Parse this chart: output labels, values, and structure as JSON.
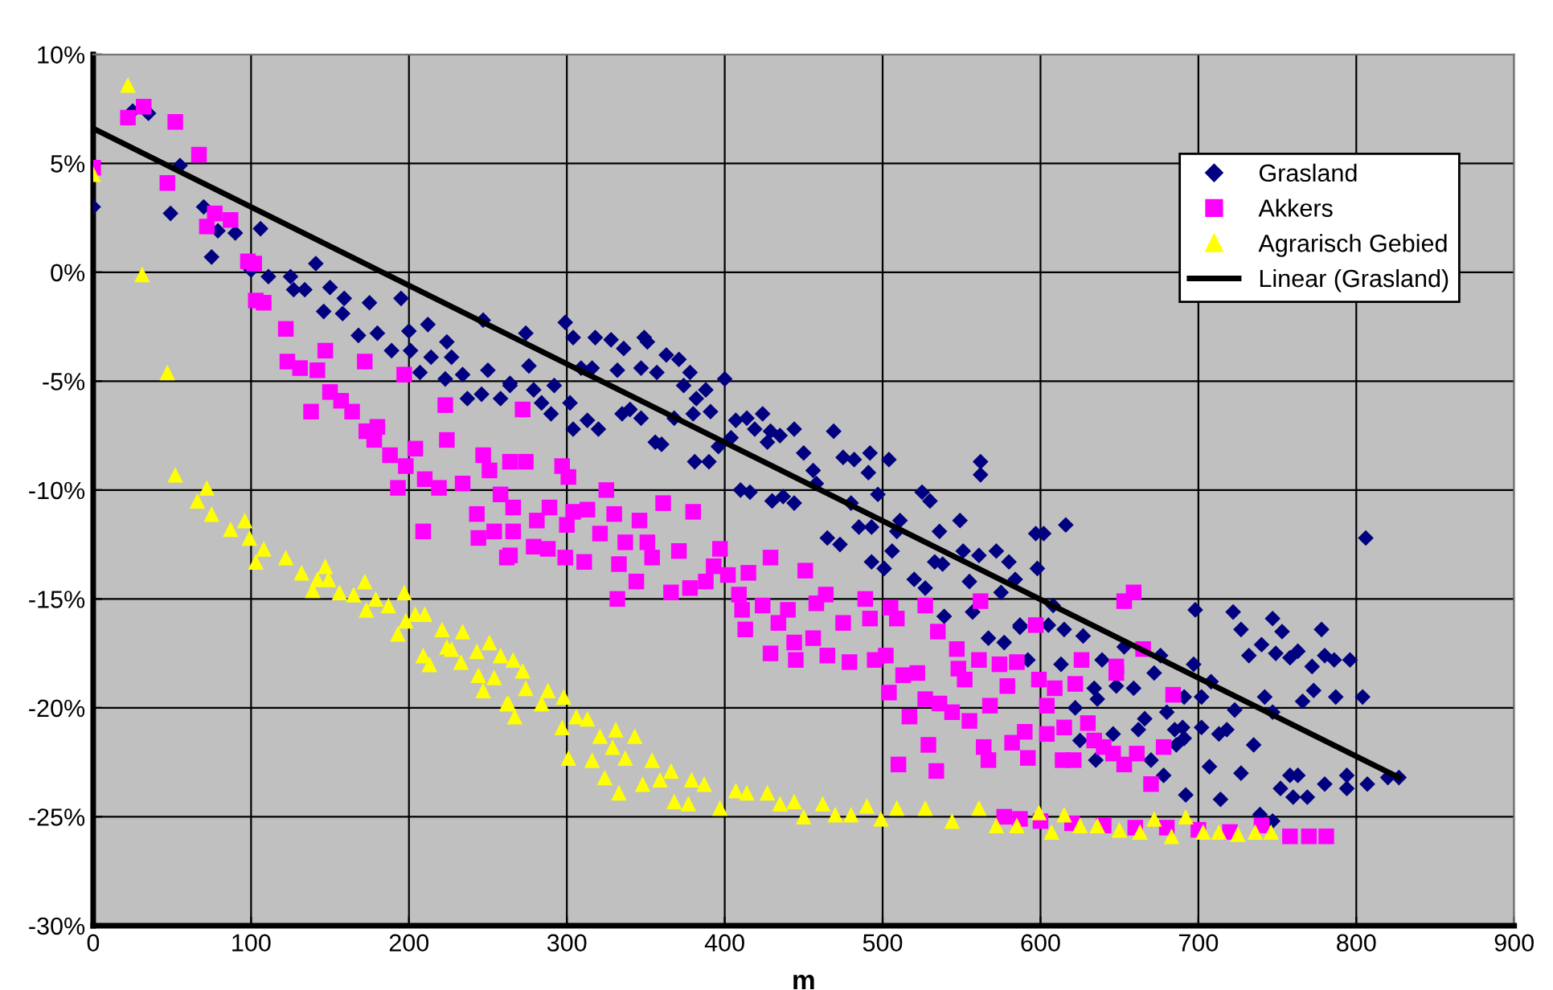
{
  "chart_data": {
    "type": "scatter",
    "xlabel": "m",
    "xlim": [
      0,
      900
    ],
    "xticks": [
      0,
      100,
      200,
      300,
      400,
      500,
      600,
      700,
      800,
      900
    ],
    "ylim": [
      -30,
      10
    ],
    "yticks": [
      {
        "value": -30,
        "label": "-30%"
      },
      {
        "value": -25,
        "label": "-25%"
      },
      {
        "value": -20,
        "label": "-20%"
      },
      {
        "value": -15,
        "label": "-15%"
      },
      {
        "value": -10,
        "label": "-10%"
      },
      {
        "value": -5,
        "label": "-5%"
      },
      {
        "value": 0,
        "label": "0%"
      },
      {
        "value": 5,
        "label": "5%"
      },
      {
        "value": 10,
        "label": "10%"
      }
    ],
    "grid": true,
    "legend": "top right",
    "series": [
      {
        "name": "Grasland",
        "marker": "diamond",
        "color": "#000080",
        "x": [
          0,
          25,
          35,
          55,
          49,
          70,
          75,
          79,
          90,
          106,
          100,
          111,
          125,
          127,
          134,
          141,
          150,
          146,
          159,
          158,
          168,
          175,
          180,
          189,
          195,
          200,
          201,
          207,
          212,
          214,
          224,
          227,
          223,
          234,
          237,
          246,
          247,
          250,
          258,
          264,
          274,
          299,
          304,
          318,
          328,
          336,
          349,
          351,
          363,
          371,
          276,
          309,
          316,
          332,
          347,
          357,
          378,
          400,
          264,
          279,
          292,
          284,
          290,
          302,
          313,
          304,
          320,
          335,
          340,
          347,
          356,
          360,
          368,
          374,
          380,
          382,
          388,
          391,
          381,
          390,
          396,
          404,
          407,
          414,
          419,
          424,
          429,
          435,
          427,
          444,
          450,
          456,
          410,
          416,
          430,
          437,
          444,
          458,
          469,
          475,
          482,
          492,
          491,
          504,
          497,
          480,
          465,
          473,
          485,
          493,
          493,
          501,
          506,
          511,
          509,
          525,
          530,
          536,
          549,
          520,
          527,
          533,
          538,
          551,
          555,
          561,
          572,
          580,
          575,
          539,
          557,
          567,
          577,
          587,
          562,
          562,
          597,
          602,
          616,
          598,
          584,
          608,
          587,
          605,
          615,
          627,
          613,
          592,
          639,
          653,
          659,
          648,
          634,
          636,
          622,
          672,
          676,
          680,
          666,
          662,
          646,
          625,
          635,
          670,
          678,
          685,
          690,
          691,
          686,
          698,
          697,
          691,
          702,
          708,
          702,
          707,
          692,
          713,
          718,
          714,
          722,
          727,
          723,
          735,
          727,
          732,
          740,
          747,
          753,
          749,
          758,
          763,
          742,
          747,
          739,
          747,
          752,
          758,
          763,
          760,
          769,
          766,
          773,
          772,
          778,
          780,
          786,
          796,
          787,
          780,
          794,
          794,
          804,
          806,
          807,
          820,
          827
        ],
        "values": [
          3.0,
          7.4,
          7.3,
          4.9,
          2.7,
          3.0,
          0.7,
          1.9,
          1.8,
          2.0,
          0.1,
          -0.2,
          -0.2,
          -0.8,
          -0.8,
          0.4,
          -0.7,
          -1.8,
          -1.2,
          -1.9,
          -2.9,
          -1.4,
          -2.8,
          -3.6,
          -1.2,
          -2.7,
          -3.6,
          -4.6,
          -2.4,
          -3.9,
          -3.2,
          -3.9,
          -4.9,
          -4.7,
          -5.8,
          -5.6,
          -2.2,
          -4.5,
          -5.8,
          -5.1,
          -2.8,
          -2.3,
          -3.0,
          -3.0,
          -3.1,
          -3.5,
          -3.0,
          -3.2,
          -3.8,
          -4.0,
          -4.3,
          -4.4,
          -4.4,
          -4.5,
          -4.4,
          -4.6,
          -4.6,
          -4.9,
          -5.2,
          -5.4,
          -5.2,
          -6.0,
          -6.5,
          -6.0,
          -6.8,
          -7.2,
          -7.2,
          -6.5,
          -6.3,
          -6.7,
          -7.8,
          -7.9,
          -6.7,
          -5.2,
          -6.5,
          -5.8,
          -5.4,
          -6.4,
          -8.7,
          -8.7,
          -8.0,
          -7.6,
          -6.8,
          -6.7,
          -7.2,
          -6.5,
          -7.3,
          -7.5,
          -7.8,
          -7.2,
          -8.3,
          -9.1,
          -10.0,
          -10.1,
          -10.5,
          -10.3,
          -10.6,
          -9.7,
          -7.3,
          -8.5,
          -8.6,
          -8.3,
          -9.2,
          -8.6,
          -10.2,
          -10.6,
          -12.2,
          -12.5,
          -11.7,
          -11.7,
          -13.3,
          -13.6,
          -12.8,
          -11.4,
          -11.9,
          -10.1,
          -10.5,
          -11.9,
          -11.4,
          -14.1,
          -14.5,
          -13.3,
          -13.4,
          -12.8,
          -14.2,
          -13.0,
          -12.8,
          -13.3,
          -14.7,
          -15.8,
          -15.6,
          -16.8,
          -17.0,
          -16.2,
          -8.7,
          -9.3,
          -12.0,
          -12.0,
          -11.6,
          -13.6,
          -14.1,
          -15.3,
          -16.3,
          -16.2,
          -16.4,
          -16.7,
          -18.0,
          -17.8,
          -17.8,
          -17.2,
          -19.1,
          -19.0,
          -19.1,
          -19.6,
          -20.0,
          -18.4,
          -17.6,
          -20.2,
          -20.5,
          -21.0,
          -21.2,
          -21.5,
          -22.4,
          -22.4,
          -23.1,
          -21.0,
          -20.9,
          -21.4,
          -21.7,
          -15.5,
          -18.0,
          -19.5,
          -19.5,
          -18.8,
          -20.9,
          -22.7,
          -24.0,
          -21.2,
          -21.0,
          -24.2,
          -15.6,
          -16.4,
          -20.1,
          -21.7,
          -23.0,
          -17.6,
          -17.1,
          -15.9,
          -16.5,
          -17.5,
          -17.7,
          -17.4,
          -19.5,
          -20.2,
          -24.9,
          -25.2,
          -23.7,
          -23.1,
          -23.1,
          -24.1,
          -24.1,
          -19.7,
          -19.2,
          -18.1,
          -16.4,
          -17.6,
          -17.8,
          -17.8,
          -19.5,
          -23.5,
          -23.1,
          -23.7,
          -19.5,
          -12.2,
          -23.5,
          -23.2,
          -23.2
        ]
      },
      {
        "name": "Akkers",
        "marker": "square",
        "color": "#ff00ff",
        "x": [
          0,
          22,
          32,
          52,
          67,
          47,
          72,
          77,
          87,
          98,
          102,
          103,
          108,
          122,
          123,
          131,
          147,
          142,
          138,
          150,
          157,
          164,
          172,
          173,
          180,
          178,
          188,
          198,
          197,
          204,
          223,
          224,
          193,
          210,
          219,
          234,
          247,
          251,
          264,
          258,
          209,
          244,
          254,
          262,
          243,
          272,
          274,
          297,
          301,
          325,
          266,
          289,
          304,
          313,
          330,
          361,
          380,
          266,
          281,
          300,
          321,
          346,
          264,
          279,
          288,
          299,
          311,
          333,
          337,
          351,
          354,
          371,
          397,
          429,
          344,
          332,
          366,
          378,
          388,
          393,
          402,
          415,
          409,
          411,
          413,
          424,
          434,
          440,
          451,
          429,
          445,
          444,
          456,
          465,
          458,
          464,
          475,
          489,
          492,
          505,
          509,
          479,
          495,
          502,
          504,
          513,
          522,
          517,
          527,
          536,
          544,
          555,
          568,
          579,
          529,
          510,
          534,
          564,
          567,
          582,
          548,
          552,
          547,
          561,
          574,
          562,
          527,
          535,
          653,
          659,
          597,
          665,
          626,
          648,
          648,
          599,
          622,
          609,
          684,
          585,
          604,
          630,
          615,
          590,
          604,
          634,
          640,
          646,
          661,
          678,
          592,
          614,
          621,
          653,
          670,
          577,
          587,
          600,
          620,
          640,
          660,
          680,
          700,
          720,
          740,
          758,
          770,
          781
        ],
        "values": [
          4.8,
          7.1,
          7.6,
          6.9,
          5.4,
          4.1,
          2.1,
          2.7,
          2.4,
          0.5,
          0.4,
          -1.3,
          -1.4,
          -2.6,
          -4.1,
          -4.4,
          -3.6,
          -4.5,
          -6.4,
          -5.5,
          -5.9,
          -6.4,
          -4.1,
          -7.3,
          -7.1,
          -7.7,
          -8.4,
          -8.9,
          -4.7,
          -8.1,
          -6.1,
          -7.7,
          -9.9,
          -9.5,
          -9.9,
          -9.7,
          -8.4,
          -9.1,
          -8.7,
          -10.2,
          -11.9,
          -12.2,
          -11.9,
          -13.1,
          -11.1,
          -6.3,
          -8.7,
          -8.9,
          -9.4,
          -10.0,
          -10.8,
          -10.8,
          -11.0,
          -10.9,
          -11.1,
          -10.6,
          -11.0,
          -11.9,
          -11.4,
          -11.6,
          -12.0,
          -11.4,
          -13.0,
          -12.6,
          -12.7,
          -13.1,
          -13.3,
          -13.4,
          -12.4,
          -12.4,
          -13.1,
          -12.8,
          -12.7,
          -13.1,
          -14.2,
          -15.0,
          -14.7,
          -14.5,
          -14.2,
          -13.5,
          -13.9,
          -13.8,
          -14.8,
          -15.5,
          -16.4,
          -15.3,
          -16.1,
          -15.5,
          -13.7,
          -17.5,
          -17.8,
          -17.0,
          -16.8,
          -17.6,
          -15.2,
          -14.8,
          -16.1,
          -15.0,
          -15.9,
          -15.4,
          -15.9,
          -17.9,
          -17.8,
          -17.6,
          -19.3,
          -18.5,
          -18.4,
          -20.4,
          -19.6,
          -19.8,
          -20.2,
          -20.6,
          -19.9,
          -19.0,
          -21.7,
          -22.6,
          -22.9,
          -21.8,
          -22.4,
          -21.6,
          -18.2,
          -18.7,
          -17.3,
          -17.8,
          -18.0,
          -15.1,
          -15.3,
          -16.5,
          -15.1,
          -14.7,
          -16.2,
          -17.3,
          -17.8,
          -18.1,
          -18.4,
          -18.7,
          -18.9,
          -19.1,
          -19.4,
          -17.9,
          -19.9,
          -20.7,
          -20.9,
          -21.1,
          -21.2,
          -21.5,
          -21.8,
          -22.1,
          -22.1,
          -21.8,
          -22.3,
          -22.4,
          -22.4,
          -22.6,
          -23.5,
          -25.0,
          -25.1,
          -25.2,
          -25.3,
          -25.4,
          -25.5,
          -25.5,
          -25.6,
          -25.7,
          -25.4,
          -25.9,
          -25.9,
          -25.9
        ]
      },
      {
        "name": "Agrarisch Gebied",
        "marker": "triangle",
        "color": "#ffff00",
        "x": [
          0,
          22,
          31,
          47,
          52,
          72,
          66,
          75,
          87,
          96,
          99,
          103,
          108,
          122,
          132,
          139,
          142,
          147,
          149,
          156,
          165,
          172,
          173,
          179,
          187,
          193,
          197,
          198,
          204,
          210,
          209,
          213,
          221,
          224,
          227,
          234,
          233,
          243,
          244,
          251,
          247,
          254,
          258,
          262,
          266,
          272,
          274,
          263,
          267,
          288,
          298,
          284,
          297,
          306,
          313,
          301,
          316,
          321,
          331,
          329,
          343,
          337,
          324,
          333,
          354,
          348,
          359,
          366,
          368,
          379,
          377,
          387,
          397,
          407,
          414,
          427,
          435,
          444,
          450,
          462,
          470,
          480,
          490,
          499,
          509,
          527,
          544,
          561,
          572,
          585,
          599,
          615,
          607,
          625,
          636,
          650,
          663,
          672,
          683,
          692,
          703,
          713,
          725,
          736,
          746
        ],
        "values": [
          4.5,
          8.6,
          -0.1,
          -4.6,
          -9.3,
          -9.9,
          -10.5,
          -11.1,
          -11.8,
          -11.4,
          -12.2,
          -13.3,
          -12.7,
          -13.1,
          -13.8,
          -14.6,
          -14.1,
          -13.5,
          -14.1,
          -14.7,
          -14.8,
          -14.2,
          -15.5,
          -15.0,
          -15.3,
          -16.6,
          -14.7,
          -16.0,
          -15.7,
          -15.7,
          -17.6,
          -18.0,
          -16.4,
          -17.2,
          -17.3,
          -16.5,
          -17.9,
          -17.4,
          -18.5,
          -17.0,
          -19.2,
          -18.6,
          -17.6,
          -19.8,
          -17.8,
          -18.3,
          -19.1,
          -19.8,
          -20.4,
          -19.2,
          -19.5,
          -19.8,
          -20.9,
          -20.4,
          -20.5,
          -22.3,
          -22.4,
          -21.3,
          -21.0,
          -21.8,
          -21.3,
          -22.3,
          -23.2,
          -23.9,
          -22.4,
          -23.5,
          -23.3,
          -22.9,
          -24.3,
          -23.3,
          -24.4,
          -23.5,
          -24.6,
          -23.8,
          -23.9,
          -23.9,
          -24.4,
          -24.3,
          -25.0,
          -24.4,
          -24.9,
          -24.9,
          -24.5,
          -25.1,
          -24.6,
          -24.6,
          -25.2,
          -24.6,
          -25.4,
          -25.4,
          -24.8,
          -24.9,
          -25.7,
          -25.4,
          -25.4,
          -25.6,
          -25.7,
          -25.1,
          -25.9,
          -25.0,
          -25.7,
          -25.7,
          -25.8,
          -25.7,
          -25.7
        ]
      },
      {
        "name": "Linear (Grasland)",
        "type": "line",
        "marker": "none",
        "line_style": "solid",
        "color": "#000000",
        "x": [
          0,
          827
        ],
        "values": [
          6.6,
          -23.2
        ]
      }
    ]
  }
}
